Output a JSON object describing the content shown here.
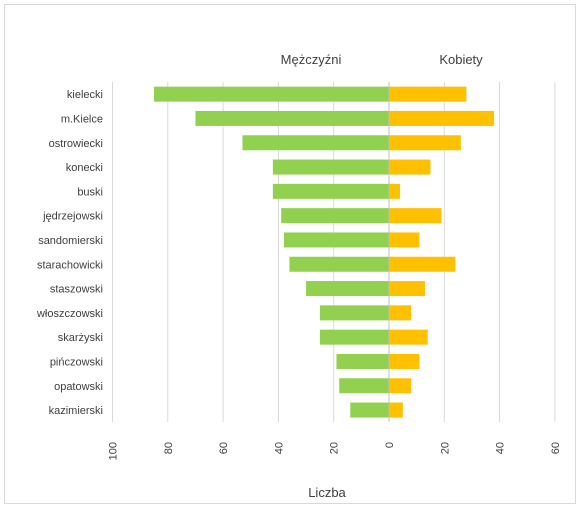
{
  "chart_data": {
    "type": "bar",
    "orientation": "horizontal",
    "layout": "population-pyramid",
    "categories": [
      "kielecki",
      "m.Kielce",
      "ostrowiecki",
      "konecki",
      "buski",
      "jędrzejowski",
      "sandomierski",
      "starachowicki",
      "staszowski",
      "włoszczowski",
      "skarżyski",
      "pińczowski",
      "opatowski",
      "kazimierski"
    ],
    "series": [
      {
        "name": "Mężczyźni",
        "color": "#92d050",
        "side": "left",
        "values": [
          85,
          70,
          53,
          42,
          42,
          39,
          38,
          36,
          30,
          25,
          25,
          19,
          18,
          14
        ]
      },
      {
        "name": "Kobiety",
        "color": "#ffc000",
        "side": "right",
        "values": [
          28,
          38,
          26,
          15,
          4,
          19,
          11,
          24,
          13,
          8,
          14,
          11,
          8,
          5
        ]
      }
    ],
    "x_ticks": [
      "100",
      "80",
      "60",
      "40",
      "20",
      "0",
      "20",
      "40",
      "60"
    ],
    "xlim_left": [
      100,
      0
    ],
    "xlim_right": [
      0,
      60
    ],
    "xlabel": "Liczba",
    "grid": "vertical"
  }
}
